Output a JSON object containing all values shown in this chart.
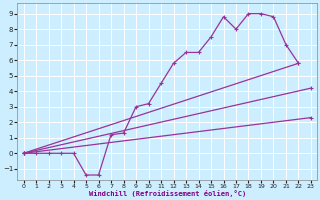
{
  "xlabel": "Windchill (Refroidissement éolien,°C)",
  "bg_color": "#cceeff",
  "grid_color": "#ffffff",
  "line_color": "#993399",
  "xlim": [
    -0.5,
    23.5
  ],
  "ylim": [
    -1.7,
    9.7
  ],
  "xticks": [
    0,
    1,
    2,
    3,
    4,
    5,
    6,
    7,
    8,
    9,
    10,
    11,
    12,
    13,
    14,
    15,
    16,
    17,
    18,
    19,
    20,
    21,
    22,
    23
  ],
  "yticks": [
    -1,
    0,
    1,
    2,
    3,
    4,
    5,
    6,
    7,
    8,
    9
  ],
  "curve1_x": [
    0,
    1,
    2,
    3,
    4,
    5,
    6,
    7,
    8,
    9,
    10,
    11,
    12,
    13,
    14,
    15,
    16,
    17,
    18,
    19,
    20,
    21,
    22
  ],
  "curve1_y": [
    0,
    0,
    0,
    0,
    0,
    -1.4,
    -1.4,
    1.2,
    1.3,
    3.0,
    3.2,
    4.5,
    5.8,
    6.5,
    6.5,
    7.5,
    8.8,
    8.0,
    9.0,
    9.0,
    8.8,
    7.0,
    5.8
  ],
  "curve2_x": [
    0,
    22
  ],
  "curve2_y": [
    0,
    5.8
  ],
  "curve3_x": [
    0,
    23
  ],
  "curve3_y": [
    0,
    4.2
  ],
  "curve4_x": [
    0,
    23
  ],
  "curve4_y": [
    0,
    2.3
  ],
  "marker": "+",
  "markersize": 3,
  "linewidth": 0.9
}
